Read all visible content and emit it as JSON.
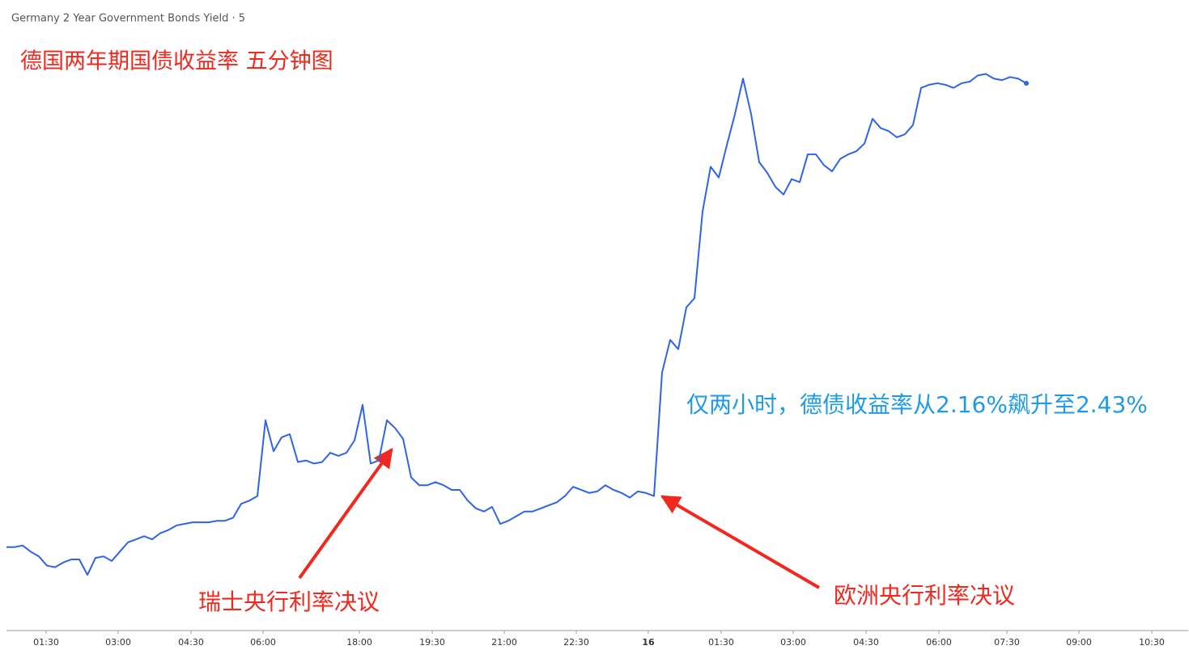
{
  "chart_data": {
    "type": "line",
    "title": "Germany 2 Year Government Bonds Yield · 5",
    "annotations": [
      "德国两年期国债收益率 五分钟图",
      "仅两小时，德债收益率从2.16%飙升至2.43%",
      "瑞士央行利率决议",
      "欧洲央行利率决议"
    ],
    "color": "#2f63e8",
    "values": [
      2.126,
      2.126,
      2.127,
      2.123,
      2.12,
      2.114,
      2.113,
      2.116,
      2.118,
      2.118,
      2.108,
      2.119,
      2.12,
      2.117,
      2.123,
      2.129,
      2.131,
      2.133,
      2.131,
      2.135,
      2.137,
      2.14,
      2.141,
      2.142,
      2.142,
      2.142,
      2.143,
      2.143,
      2.145,
      2.154,
      2.156,
      2.159,
      2.208,
      2.188,
      2.197,
      2.199,
      2.181,
      2.182,
      2.18,
      2.181,
      2.187,
      2.185,
      2.187,
      2.195,
      2.218,
      2.18,
      2.182,
      2.208,
      2.203,
      2.196,
      2.171,
      2.166,
      2.166,
      2.168,
      2.166,
      2.163,
      2.163,
      2.156,
      2.151,
      2.149,
      2.152,
      2.141,
      2.143,
      2.146,
      2.149,
      2.149,
      2.151,
      2.153,
      2.155,
      2.159,
      2.165,
      2.163,
      2.161,
      2.162,
      2.166,
      2.163,
      2.161,
      2.158,
      2.162,
      2.161,
      2.159,
      2.239,
      2.26,
      2.254,
      2.281,
      2.287,
      2.343,
      2.372,
      2.365,
      2.386,
      2.406,
      2.429,
      2.406,
      2.375,
      2.368,
      2.359,
      2.354,
      2.364,
      2.362,
      2.38,
      2.38,
      2.373,
      2.369,
      2.377,
      2.38,
      2.382,
      2.387,
      2.403,
      2.397,
      2.395,
      2.391,
      2.393,
      2.399,
      2.423,
      2.425,
      2.426,
      2.425,
      2.423,
      2.426,
      2.427,
      2.431,
      2.432,
      2.429,
      2.428,
      2.43,
      2.429,
      2.426
    ],
    "xlim": [
      0,
      146
    ],
    "xticks": [
      {
        "value": 4.9,
        "label": "01:30"
      },
      {
        "value": 13.8,
        "label": "03:00"
      },
      {
        "value": 22.8,
        "label": "04:30"
      },
      {
        "value": 31.7,
        "label": "06:00"
      },
      {
        "value": 43.6,
        "label": "18:00"
      },
      {
        "value": 52.6,
        "label": "19:30"
      },
      {
        "value": 61.5,
        "label": "21:00"
      },
      {
        "value": 70.4,
        "label": "22:30"
      },
      {
        "value": 79.3,
        "label": "16"
      },
      {
        "value": 88.3,
        "label": "01:30"
      },
      {
        "value": 97.2,
        "label": "03:00"
      },
      {
        "value": 106.2,
        "label": "04:30"
      },
      {
        "value": 115.2,
        "label": "06:00"
      },
      {
        "value": 123.6,
        "label": "07:30"
      },
      {
        "value": 132.5,
        "label": "09:00"
      },
      {
        "value": 141.5,
        "label": "10:30"
      }
    ],
    "ylim": [
      2.072,
      2.438
    ]
  }
}
